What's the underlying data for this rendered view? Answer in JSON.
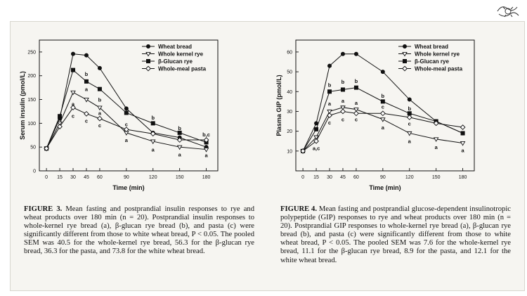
{
  "chart_data": [
    {
      "type": "line",
      "xlabel": "Time (min)",
      "ylabel": "Serum insulin (pmol/L)",
      "x": [
        0,
        15,
        30,
        45,
        60,
        90,
        120,
        150,
        180
      ],
      "xticks": [
        0,
        15,
        30,
        45,
        60,
        90,
        120,
        150,
        180
      ],
      "xlim": [
        -8,
        193
      ],
      "ylim": [
        0,
        275
      ],
      "yticks": [
        0,
        50,
        100,
        150,
        200,
        250
      ],
      "grid": false,
      "legend_position": "top-right",
      "series": [
        {
          "name": "Wheat bread",
          "marker": "circle-filled",
          "values": [
            47,
            110,
            246,
            243,
            216,
            131,
            80,
            70,
            50
          ]
        },
        {
          "name": "Whole kernel rye",
          "marker": "triangle-down-open",
          "values": [
            47,
            100,
            165,
            150,
            133,
            80,
            62,
            50,
            45
          ]
        },
        {
          "name": "β-Glucan rye",
          "marker": "square-filled",
          "values": [
            47,
            115,
            212,
            188,
            172,
            122,
            100,
            80,
            60
          ]
        },
        {
          "name": "Whole-meal pasta",
          "marker": "diamond-open",
          "values": [
            47,
            93,
            133,
            120,
            110,
            87,
            78,
            65,
            65
          ]
        }
      ],
      "annotations": [
        {
          "text": "b",
          "x": 45,
          "y": 204
        },
        {
          "text": "a",
          "x": 45,
          "y": 172
        },
        {
          "text": "a",
          "x": 30,
          "y": 141
        },
        {
          "text": "c",
          "x": 30,
          "y": 116
        },
        {
          "text": "b",
          "x": 60,
          "y": 150
        },
        {
          "text": "a",
          "x": 60,
          "y": 122
        },
        {
          "text": "c",
          "x": 45,
          "y": 106
        },
        {
          "text": "c",
          "x": 60,
          "y": 96
        },
        {
          "text": "c",
          "x": 90,
          "y": 98
        },
        {
          "text": "a",
          "x": 90,
          "y": 65
        },
        {
          "text": "b",
          "x": 120,
          "y": 112
        },
        {
          "text": "a",
          "x": 120,
          "y": 45
        },
        {
          "text": "b",
          "x": 150,
          "y": 90
        },
        {
          "text": "a",
          "x": 150,
          "y": 35
        },
        {
          "text": "b,c",
          "x": 180,
          "y": 77
        },
        {
          "text": "a",
          "x": 180,
          "y": 33
        }
      ]
    },
    {
      "type": "line",
      "xlabel": "Time (min)",
      "ylabel": "Plasma GIP (pmol/L)",
      "x": [
        0,
        15,
        30,
        45,
        60,
        90,
        120,
        150,
        180
      ],
      "xticks": [
        0,
        15,
        30,
        45,
        60,
        90,
        120,
        150,
        180
      ],
      "xlim": [
        -8,
        193
      ],
      "ylim": [
        0,
        66
      ],
      "yticks": [
        10,
        20,
        30,
        40,
        50,
        60
      ],
      "grid": false,
      "legend_position": "top-right",
      "series": [
        {
          "name": "Wheat bread",
          "marker": "circle-filled",
          "values": [
            10,
            24,
            53,
            59,
            59,
            50,
            36,
            25,
            19
          ]
        },
        {
          "name": "Whole kernel rye",
          "marker": "triangle-down-open",
          "values": [
            10,
            17,
            30,
            32,
            31,
            26,
            19,
            16,
            14
          ]
        },
        {
          "name": "β-Glucan rye",
          "marker": "square-filled",
          "values": [
            10,
            21,
            40,
            41,
            42,
            35,
            29,
            25,
            19
          ]
        },
        {
          "name": "Whole-meal pasta",
          "marker": "diamond-open",
          "values": [
            10,
            15,
            28,
            30,
            29,
            29,
            27,
            24,
            22
          ]
        }
      ],
      "annotations": [
        {
          "text": "b",
          "x": 30,
          "y": 43.5
        },
        {
          "text": "a",
          "x": 30,
          "y": 34
        },
        {
          "text": "c",
          "x": 30,
          "y": 24.5
        },
        {
          "text": "b",
          "x": 45,
          "y": 45
        },
        {
          "text": "a",
          "x": 45,
          "y": 35.5
        },
        {
          "text": "c",
          "x": 45,
          "y": 26
        },
        {
          "text": "b",
          "x": 60,
          "y": 45.5
        },
        {
          "text": "a",
          "x": 60,
          "y": 34.5
        },
        {
          "text": "c",
          "x": 60,
          "y": 26
        },
        {
          "text": "b",
          "x": 90,
          "y": 38
        },
        {
          "text": "c",
          "x": 90,
          "y": 32.5
        },
        {
          "text": "a",
          "x": 90,
          "y": 22
        },
        {
          "text": "b",
          "x": 120,
          "y": 31.5
        },
        {
          "text": "c",
          "x": 120,
          "y": 24
        },
        {
          "text": "a",
          "x": 120,
          "y": 15
        },
        {
          "text": "a",
          "x": 150,
          "y": 12
        },
        {
          "text": "a",
          "x": 180,
          "y": 10.5
        },
        {
          "text": "a,c",
          "x": 15,
          "y": 11.5
        }
      ]
    }
  ],
  "captions": {
    "left": {
      "label": "FIGURE 3.",
      "text": "Mean fasting and postprandial insulin responses to rye and wheat products over 180 min (n = 20). Postprandial insulin responses to whole-kernel rye bread (a), β-glucan rye bread (b), and pasta (c) were significantly different from those to white wheat bread, P < 0.05. The pooled SEM was 40.5 for the whole-kernel rye bread, 56.3 for the β-glucan rye bread, 36.3 for the pasta, and 73.8 for the white wheat bread."
    },
    "right": {
      "label": "FIGURE 4.",
      "text": "Mean fasting and postprandial glucose-dependent insulinotropic polypeptide (GIP) responses to rye and wheat products over 180 min (n = 20). Postprandial GIP responses to whole-kernel rye bread (a), β-glucan rye bread (b), and pasta (c) were significantly different from those to white wheat bread, P < 0.05. The pooled SEM was 7.6 for the whole-kernel rye bread, 11.1 for the β-glucan rye bread, 8.9 for the pasta, and 12.1 for the white wheat bread."
    }
  },
  "colors": {
    "ink": "#111111",
    "panel": "#f6f5f1",
    "marker_open_fill": "#ffffff"
  }
}
